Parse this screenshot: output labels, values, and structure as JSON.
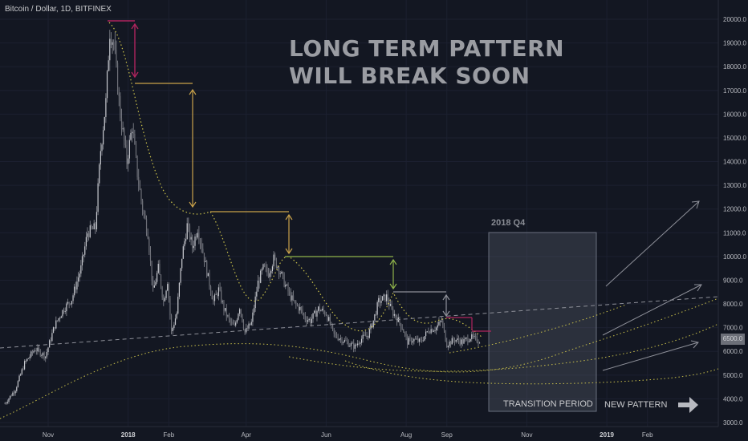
{
  "symbol_line": "Bitcoin / Dollar, 1D, BITFINEX",
  "headline": [
    "LONG TERM PATTERN",
    "WILL BREAK SOON"
  ],
  "box_label": "2018 Q4",
  "transition_label": "TRANSITION PERIOD",
  "new_pattern_label": "NEW PATTERN",
  "last_price_tag": "6500.0",
  "colors": {
    "background": "#131722",
    "candles": "#8a8c94",
    "yellow_dotted": "#c9c04a",
    "gold_lines": "#c9a24a",
    "magenta": "#b0245e",
    "grey_lines": "#8e9099",
    "green": "#8fb34a",
    "box_fill": "#5a5f6e"
  },
  "icons": [
    "right-arrow-icon"
  ],
  "chart_data": {
    "type": "line",
    "title": "",
    "xlabel": "",
    "ylabel": "",
    "ylim": [
      3000,
      20000
    ],
    "y_ticks": [
      "20000.0",
      "19000.0",
      "18000.0",
      "17000.0",
      "16000.0",
      "15000.0",
      "14000.0",
      "13000.0",
      "12000.0",
      "11000.0",
      "10000.0",
      "9000.0",
      "8000.0",
      "7000.0",
      "6000.0",
      "5000.0",
      "4000.0",
      "3000.0"
    ],
    "x_ticks": [
      {
        "label": "Nov",
        "day": 0
      },
      {
        "label": "2018",
        "day": 61,
        "bold": true
      },
      {
        "label": "Feb",
        "day": 92
      },
      {
        "label": "Apr",
        "day": 151
      },
      {
        "label": "Jun",
        "day": 212
      },
      {
        "label": "Aug",
        "day": 273
      },
      {
        "label": "Sep",
        "day": 304
      },
      {
        "label": "Nov",
        "day": 365
      },
      {
        "label": "2019",
        "day": 426,
        "bold": true
      },
      {
        "label": "Feb",
        "day": 457
      }
    ],
    "series": [
      {
        "values": [
          [
            -33,
            3800
          ],
          [
            -25,
            4400
          ],
          [
            -18,
            5500
          ],
          [
            -10,
            6100
          ],
          [
            -2,
            5800
          ],
          [
            5,
            7100
          ],
          [
            12,
            7800
          ],
          [
            18,
            8200
          ],
          [
            25,
            9500
          ],
          [
            30,
            11000
          ],
          [
            36,
            11200
          ],
          [
            40,
            14500
          ],
          [
            44,
            16500
          ],
          [
            47,
            19500
          ],
          [
            50,
            19000
          ],
          [
            55,
            16000
          ],
          [
            60,
            14000
          ],
          [
            64,
            15500
          ],
          [
            68,
            13500
          ],
          [
            72,
            12000
          ],
          [
            76,
            11000
          ],
          [
            80,
            8500
          ],
          [
            84,
            9500
          ],
          [
            88,
            8100
          ],
          [
            91,
            9000
          ],
          [
            94,
            6800
          ],
          [
            98,
            7600
          ],
          [
            102,
            10000
          ],
          [
            106,
            11300
          ],
          [
            110,
            10400
          ],
          [
            114,
            11200
          ],
          [
            118,
            10200
          ],
          [
            122,
            9100
          ],
          [
            126,
            8100
          ],
          [
            130,
            8600
          ],
          [
            134,
            7800
          ],
          [
            138,
            7300
          ],
          [
            142,
            7000
          ],
          [
            146,
            7900
          ],
          [
            150,
            6800
          ],
          [
            155,
            7200
          ],
          [
            160,
            8900
          ],
          [
            164,
            9500
          ],
          [
            168,
            9300
          ],
          [
            172,
            9900
          ],
          [
            176,
            9500
          ],
          [
            180,
            8900
          ],
          [
            184,
            8400
          ],
          [
            188,
            8000
          ],
          [
            192,
            7800
          ],
          [
            196,
            7400
          ],
          [
            200,
            7300
          ],
          [
            206,
            7800
          ],
          [
            212,
            7600
          ],
          [
            218,
            6700
          ],
          [
            224,
            6500
          ],
          [
            230,
            6300
          ],
          [
            234,
            6200
          ],
          [
            238,
            6500
          ],
          [
            244,
            6700
          ],
          [
            248,
            7300
          ],
          [
            252,
            8100
          ],
          [
            258,
            8300
          ],
          [
            262,
            7700
          ],
          [
            266,
            7400
          ],
          [
            270,
            7000
          ],
          [
            274,
            6400
          ],
          [
            278,
            6500
          ],
          [
            284,
            6400
          ],
          [
            290,
            6900
          ],
          [
            296,
            7000
          ],
          [
            300,
            7300
          ],
          [
            304,
            6300
          ],
          [
            310,
            6500
          ],
          [
            316,
            6400
          ],
          [
            322,
            6600
          ],
          [
            328,
            6450
          ],
          [
            330,
            6500
          ]
        ]
      }
    ]
  }
}
